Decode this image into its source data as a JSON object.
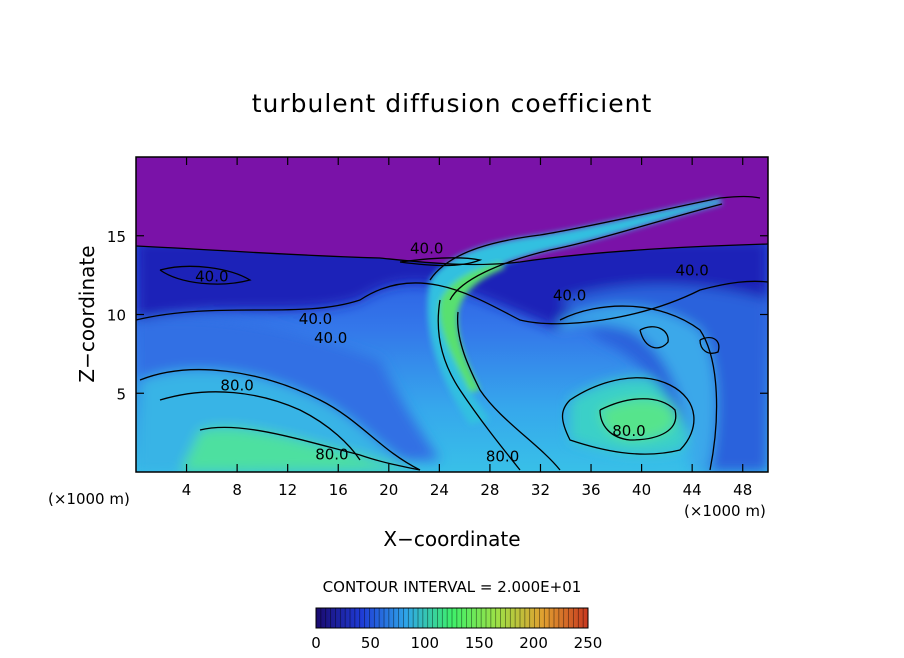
{
  "chart_data": {
    "type": "heatmap",
    "title": "turbulent diffusion coefficient",
    "xlabel": "X−coordinate",
    "ylabel": "Z−coordinate",
    "x_unit_left": "(×1000 m)",
    "x_unit_right": "(×1000 m)",
    "xlim": [
      0,
      50
    ],
    "ylim": [
      0,
      20
    ],
    "x_ticks": [
      "4",
      "8",
      "12",
      "16",
      "20",
      "24",
      "28",
      "32",
      "36",
      "40",
      "44",
      "48"
    ],
    "x_tick_values": [
      4,
      8,
      12,
      16,
      20,
      24,
      28,
      32,
      36,
      40,
      44,
      48
    ],
    "y_ticks": [
      "5",
      "10",
      "15"
    ],
    "y_tick_values": [
      5,
      10,
      15
    ],
    "contour_interval_text": "CONTOUR INTERVAL = 2.000E+01",
    "contour_labels": [
      {
        "text": "40.0",
        "x": 6.0,
        "z": 12.4
      },
      {
        "text": "40.0",
        "x": 14.2,
        "z": 9.7
      },
      {
        "text": "40.0",
        "x": 15.4,
        "z": 8.5
      },
      {
        "text": "40.0",
        "x": 23.0,
        "z": 14.2
      },
      {
        "text": "40.0",
        "x": 34.3,
        "z": 11.2
      },
      {
        "text": "40.0",
        "x": 44.0,
        "z": 12.8
      },
      {
        "text": "80.0",
        "x": 8.0,
        "z": 5.5
      },
      {
        "text": "80.0",
        "x": 15.5,
        "z": 1.1
      },
      {
        "text": "80.0",
        "x": 29.0,
        "z": 1.0
      },
      {
        "text": "80.0",
        "x": 39.0,
        "z": 2.6
      }
    ],
    "colorbar": {
      "range": [
        0,
        250
      ],
      "ticks": [
        "0",
        "50",
        "100",
        "150",
        "200",
        "250"
      ],
      "colors": [
        "#1a0a6e",
        "#1f3bd6",
        "#2fa6e8",
        "#3ef06a",
        "#9ee046",
        "#e0a030",
        "#c83820"
      ]
    },
    "field_colors": {
      "upper_layer": "#7a12a8",
      "band_dark": "#1c28c8",
      "band_mid": "#2f62e6",
      "band_light": "#3c8cf0",
      "cyan": "#38c8e8",
      "green": "#58e888"
    }
  }
}
